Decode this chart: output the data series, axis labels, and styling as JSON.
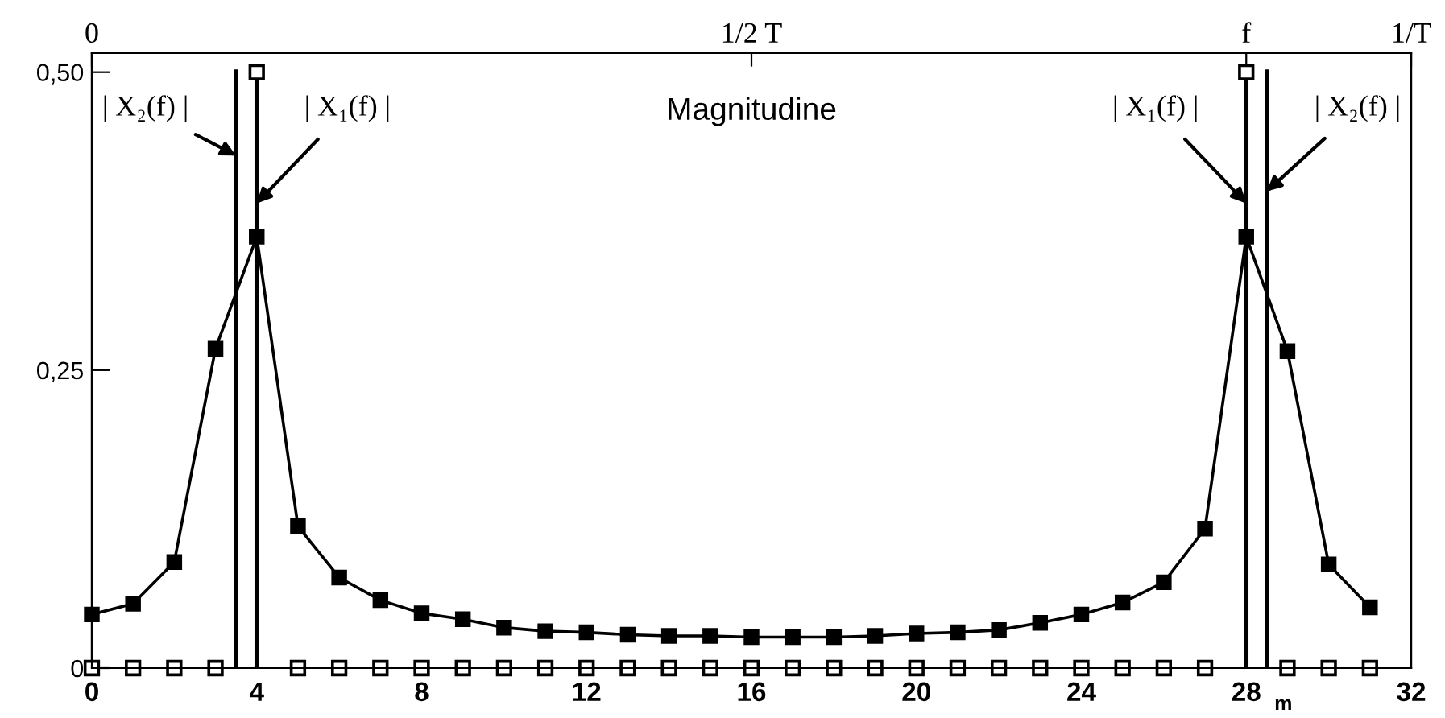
{
  "chart_data": {
    "type": "line",
    "title": "Magnitudine",
    "xlabel": "m",
    "x": [
      0,
      1,
      2,
      3,
      4,
      5,
      6,
      7,
      8,
      9,
      10,
      11,
      12,
      13,
      14,
      15,
      16,
      17,
      18,
      19,
      20,
      21,
      22,
      23,
      24,
      25,
      26,
      27,
      28,
      29,
      30,
      31
    ],
    "series": [
      {
        "color": "#000000",
        "marker": "square",
        "values": [
          0.045,
          0.054,
          0.089,
          0.268,
          0.362,
          0.119,
          0.076,
          0.057,
          0.046,
          0.041,
          0.034,
          0.031,
          0.03,
          0.028,
          0.027,
          0.027,
          0.026,
          0.026,
          0.026,
          0.027,
          0.029,
          0.03,
          0.032,
          0.038,
          0.045,
          0.055,
          0.072,
          0.117,
          0.362,
          0.266,
          0.087,
          0.051
        ]
      },
      {
        "type": "scatter",
        "color": "#000000",
        "marker": "square",
        "values": [
          0,
          0,
          0,
          0,
          0.5,
          0,
          0,
          0,
          0,
          0,
          0,
          0,
          0,
          0,
          0,
          0,
          0,
          0,
          0,
          0,
          0,
          0,
          0,
          0,
          0,
          0,
          0,
          0,
          0.5,
          0,
          0,
          0
        ]
      }
    ],
    "xlim": [
      0,
      32
    ],
    "xticks": [
      0,
      4,
      8,
      12,
      16,
      20,
      24,
      28,
      32
    ],
    "ylim": [
      0,
      0.516
    ],
    "yticks": [
      0,
      {
        "value": 0.25,
        "label": "0,25"
      },
      {
        "value": 0.5,
        "label": "0,50"
      }
    ],
    "x2lim": [
      0,
      1
    ],
    "x2ticks": [
      0,
      {
        "value": 0.5,
        "label": "1/2 T"
      },
      {
        "value": 0.875,
        "label": "f"
      },
      {
        "value": 1,
        "label": "1/T"
      }
    ],
    "ref_lines": [
      {
        "axis": "x",
        "value": 3.5,
        "color": "#000000"
      },
      {
        "axis": "x",
        "value": 4,
        "color": "#000000"
      },
      {
        "axis": "x",
        "value": 28,
        "color": "#000000"
      },
      {
        "axis": "x",
        "value": 28.5,
        "color": "#000000"
      }
    ],
    "annotations": [
      {
        "text": "| X₂(f) |",
        "x": 3.5,
        "y": 0.43
      },
      {
        "text": "| X₁(f) |",
        "x": 4,
        "y": 0.39
      },
      {
        "text": "| X₁(f) |",
        "x": 28,
        "y": 0.39
      },
      {
        "text": "| X₂(f) |",
        "x": 28.5,
        "y": 0.4
      }
    ],
    "grid": false,
    "legend": false
  }
}
